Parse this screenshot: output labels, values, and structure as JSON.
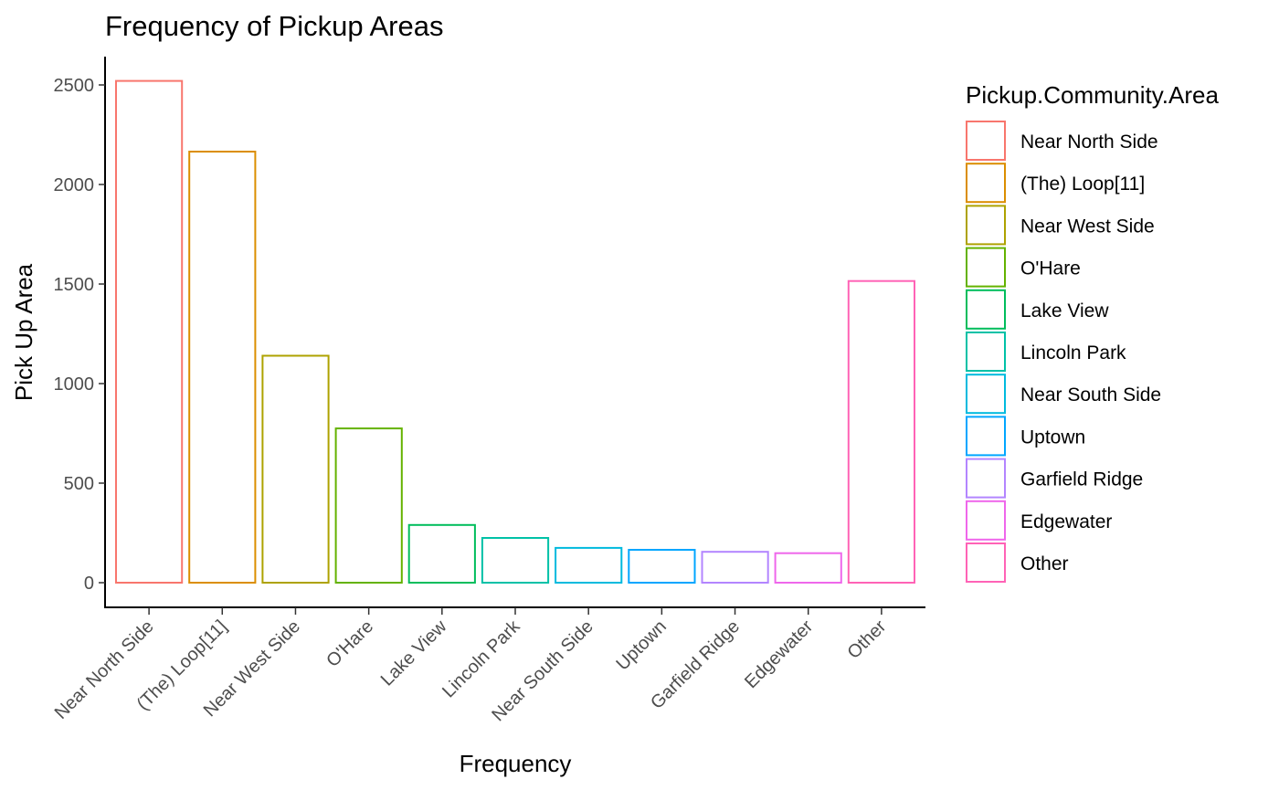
{
  "chart_data": {
    "type": "bar",
    "title": "Frequency of Pickup Areas",
    "xlabel": "Frequency",
    "ylabel": "Pick Up Area",
    "categories": [
      "Near North Side",
      "(The)  Loop[11]",
      "Near West Side",
      "O'Hare",
      "Lake View",
      "Lincoln Park",
      "Near South Side",
      "Uptown",
      "Garfield Ridge",
      "Edgewater",
      "Other"
    ],
    "values": [
      2520,
      2165,
      1140,
      775,
      290,
      225,
      175,
      165,
      155,
      148,
      1515
    ],
    "colors": [
      "#F8766D",
      "#DB8E00",
      "#AEA200",
      "#64B200",
      "#00BD5C",
      "#00C1A7",
      "#00BADE",
      "#00A6FF",
      "#B385FF",
      "#EF67EB",
      "#FF63B6"
    ],
    "yticks": [
      0,
      500,
      1000,
      1500,
      2000,
      2500
    ],
    "ylim": [
      -125,
      2640
    ],
    "grid": false,
    "legend": {
      "title": "Pickup.Community.Area",
      "position": "right"
    }
  }
}
